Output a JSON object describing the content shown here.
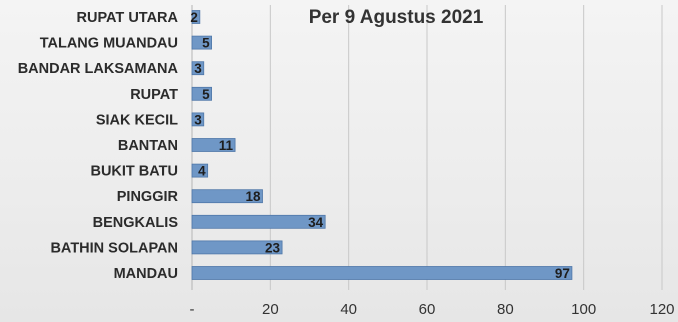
{
  "chart_data": {
    "type": "bar",
    "orientation": "horizontal",
    "title": "Per 9 Agustus 2021",
    "categories": [
      "RUPAT UTARA",
      "TALANG MUANDAU",
      "BANDAR LAKSAMANA",
      "RUPAT",
      "SIAK KECIL",
      "BANTAN",
      "BUKIT BATU",
      "PINGGIR",
      "BENGKALIS",
      "BATHIN SOLAPAN",
      "MANDAU"
    ],
    "values": [
      2,
      5,
      3,
      5,
      3,
      11,
      4,
      18,
      34,
      23,
      97
    ],
    "data_labels": [
      "2",
      "5",
      "3",
      "5",
      "3",
      "11",
      "4",
      "18",
      "34",
      "23",
      "97"
    ],
    "xlim": [
      0,
      120
    ],
    "x_ticks": [
      0,
      20,
      40,
      60,
      80,
      100,
      120
    ],
    "x_tick_labels": [
      "-",
      "20",
      "40",
      "60",
      "80",
      "100",
      "120"
    ],
    "grid": true,
    "legend": "none",
    "colors": {
      "bar": "#6f97c6",
      "bar_edge": "#4f77a8",
      "grid": "#c8c8c8",
      "text": "#2b2b2b"
    }
  }
}
